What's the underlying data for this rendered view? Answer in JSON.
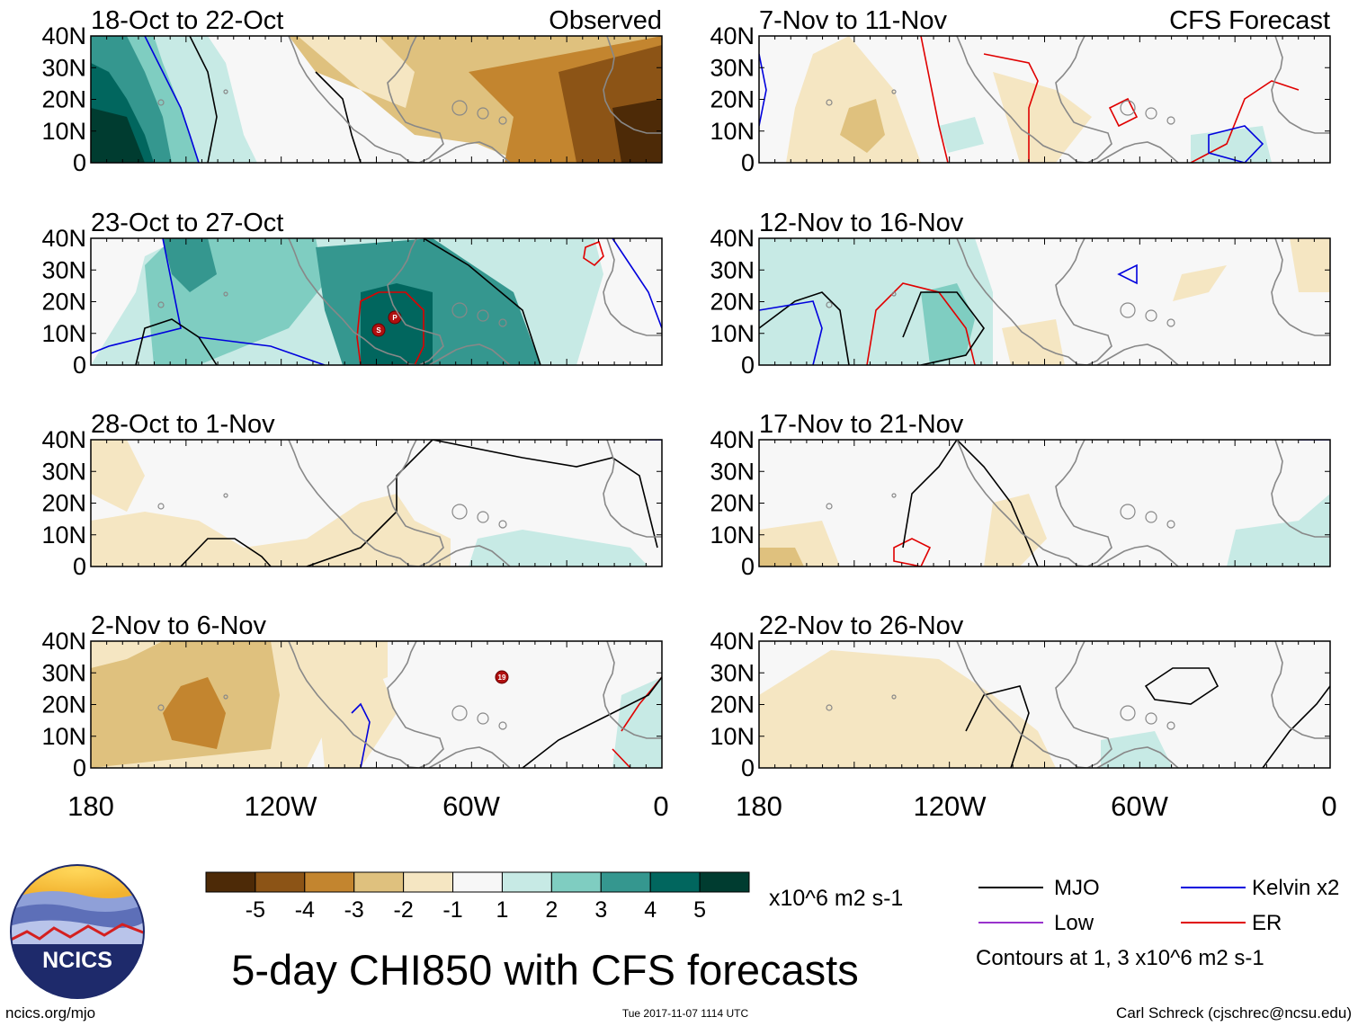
{
  "chart_data": [
    {
      "type": "heatmap",
      "title": "18-Oct to 22-Oct",
      "tag": "Observed",
      "xlim": [
        -180,
        0
      ],
      "ylim": [
        0,
        40
      ]
    },
    {
      "type": "heatmap",
      "title": "23-Oct to 27-Oct",
      "tag": "",
      "xlim": [
        -180,
        0
      ],
      "ylim": [
        0,
        40
      ]
    },
    {
      "type": "heatmap",
      "title": "28-Oct to 1-Nov",
      "tag": "",
      "xlim": [
        -180,
        0
      ],
      "ylim": [
        0,
        40
      ]
    },
    {
      "type": "heatmap",
      "title": "2-Nov to 6-Nov",
      "tag": "",
      "xlim": [
        -180,
        0
      ],
      "ylim": [
        0,
        40
      ]
    },
    {
      "type": "heatmap",
      "title": "7-Nov to 11-Nov",
      "tag": "CFS Forecast",
      "xlim": [
        -180,
        0
      ],
      "ylim": [
        0,
        40
      ]
    },
    {
      "type": "heatmap",
      "title": "12-Nov to 16-Nov",
      "tag": "",
      "xlim": [
        -180,
        0
      ],
      "ylim": [
        0,
        40
      ]
    },
    {
      "type": "heatmap",
      "title": "17-Nov to 21-Nov",
      "tag": "",
      "xlim": [
        -180,
        0
      ],
      "ylim": [
        0,
        40
      ]
    },
    {
      "type": "heatmap",
      "title": "22-Nov to 26-Nov",
      "tag": "",
      "xlim": [
        -180,
        0
      ],
      "ylim": [
        0,
        40
      ]
    }
  ],
  "y_ticks": [
    "40N",
    "30N",
    "20N",
    "10N",
    "0"
  ],
  "x_ticks": [
    "180",
    "120W",
    "60W",
    "0"
  ],
  "colorbar": {
    "colors": [
      "#4d2a07",
      "#8c5416",
      "#c3852f",
      "#dfc17e",
      "#f5e6c2",
      "#f7f7f7",
      "#c7eae5",
      "#7fcdc1",
      "#35978f",
      "#01665e",
      "#003c30"
    ],
    "labels": [
      "-5",
      "-4",
      "-3",
      "-2",
      "-1",
      "1",
      "2",
      "3",
      "4",
      "5"
    ],
    "units": "x10^6 m2 s-1"
  },
  "title": "5-day CHI850 with CFS forecasts",
  "legend": {
    "items": [
      {
        "label": "MJO",
        "color": "#000000"
      },
      {
        "label": "Kelvin x2",
        "color": "#0000dd"
      },
      {
        "label": "Low",
        "color": "#9933cc"
      },
      {
        "label": "ER",
        "color": "#e00000"
      }
    ],
    "note": "Contours at 1, 3 x10^6 m2 s-1"
  },
  "logo_text": "NCICS",
  "footer": {
    "left": "ncics.org/mjo",
    "center": "Tue 2017-11-07 1114 UTC",
    "right": "Carl Schreck (cjschrec@ncsu.edu)"
  },
  "storm_markers": [
    "P",
    "S",
    "19"
  ]
}
